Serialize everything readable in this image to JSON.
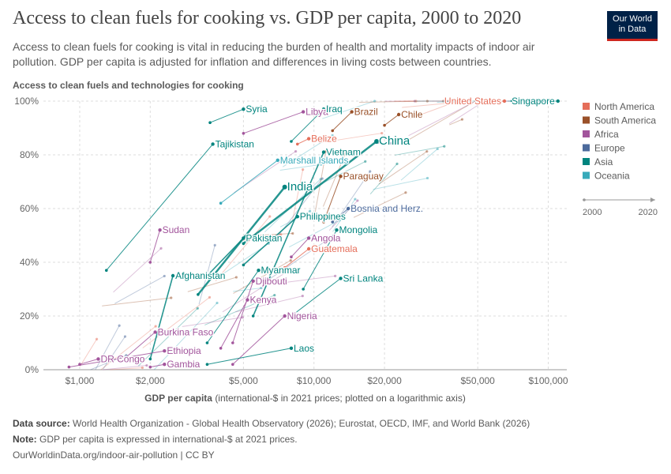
{
  "header": {
    "title": "Access to clean fuels for cooking vs. GDP per capita, 2000 to 2020",
    "subtitle": "Access to clean fuels for cooking is vital in reducing the burden of health and mortality impacts of indoor air pollution. GDP per capita is adjusted for inflation and differences in living costs between countries.",
    "logo_line1": "Our World",
    "logo_line2": "in Data"
  },
  "footer": {
    "source_label": "Data source:",
    "source_text": "World Health Organization - Global Health Observatory (2026); Eurostat, OECD, IMF, and World Bank (2026)",
    "note_label": "Note:",
    "note_text": "GDP per capita is expressed in international-$ at 2021 prices.",
    "url": "OurWorldinData.org/indoor-air-pollution | CC BY"
  },
  "chart_data": {
    "type": "scatter",
    "title": "Access to clean fuels for cooking vs. GDP per capita, 2000 to 2020",
    "ylabel": "Access to clean fuels and technologies for cooking",
    "xlabel_bold": "GDP per capita",
    "xlabel_rest": "(international-$ in 2021 prices; plotted on a logarithmic axis)",
    "x_scale": "log",
    "xlim": [
      700,
      120000
    ],
    "ylim": [
      0,
      100
    ],
    "x_ticks": [
      1000,
      2000,
      5000,
      10000,
      20000,
      50000,
      100000
    ],
    "x_tick_labels": [
      "$1,000",
      "$2,000",
      "$5,000",
      "$10,000",
      "$20,000",
      "$50,000",
      "$100,000"
    ],
    "y_ticks": [
      0,
      20,
      40,
      60,
      80,
      100
    ],
    "y_tick_labels": [
      "0%",
      "20%",
      "40%",
      "60%",
      "80%",
      "100%"
    ],
    "grid": true,
    "legend_position": "right",
    "timeline": {
      "start": "2000",
      "end": "2020"
    },
    "regions": [
      {
        "name": "North America",
        "color": "#e56e5a"
      },
      {
        "name": "South America",
        "color": "#9a5129"
      },
      {
        "name": "Africa",
        "color": "#a2559c"
      },
      {
        "name": "Europe",
        "color": "#4c6a9c"
      },
      {
        "name": "Asia",
        "color": "#00847e"
      },
      {
        "name": "Oceania",
        "color": "#38aaba"
      }
    ],
    "labeled_series": [
      {
        "name": "Syria",
        "region": "Asia",
        "x0": 3600,
        "y0": 92,
        "x1": 5000,
        "y1": 97
      },
      {
        "name": "Libya",
        "region": "Africa",
        "x0": 5000,
        "y0": 88,
        "x1": 9000,
        "y1": 96
      },
      {
        "name": "Iraq",
        "region": "Asia",
        "x0": 8000,
        "y0": 85,
        "x1": 11000,
        "y1": 97
      },
      {
        "name": "Brazil",
        "region": "South America",
        "x0": 12000,
        "y0": 89,
        "x1": 14500,
        "y1": 96
      },
      {
        "name": "Chile",
        "region": "South America",
        "x0": 20000,
        "y0": 91,
        "x1": 23000,
        "y1": 95
      },
      {
        "name": "United States",
        "region": "North America",
        "x0": 58000,
        "y0": 100,
        "x1": 65000,
        "y1": 100
      },
      {
        "name": "Singapore",
        "region": "Asia",
        "x0": 70000,
        "y0": 100,
        "x1": 110000,
        "y1": 100
      },
      {
        "name": "Belize",
        "region": "North America",
        "x0": 8500,
        "y0": 84,
        "x1": 9500,
        "y1": 86
      },
      {
        "name": "Tajikistan",
        "region": "Asia",
        "x0": 1300,
        "y0": 37,
        "x1": 3700,
        "y1": 84
      },
      {
        "name": "Vietnam",
        "region": "Asia",
        "x0": 5500,
        "y0": 20,
        "x1": 11000,
        "y1": 81
      },
      {
        "name": "China",
        "region": "Asia",
        "x0": 5000,
        "y0": 47,
        "x1": 18500,
        "y1": 85
      },
      {
        "name": "Marshall Islands",
        "region": "Oceania",
        "x0": 4000,
        "y0": 62,
        "x1": 7000,
        "y1": 78
      },
      {
        "name": "Paraguay",
        "region": "South America",
        "x0": 11000,
        "y0": 55,
        "x1": 13000,
        "y1": 72
      },
      {
        "name": "India",
        "region": "Asia",
        "x0": 3200,
        "y0": 28,
        "x1": 7500,
        "y1": 68
      },
      {
        "name": "Philippines",
        "region": "Asia",
        "x0": 5000,
        "y0": 39,
        "x1": 8500,
        "y1": 57
      },
      {
        "name": "Bosnia and Herz.",
        "region": "Europe",
        "x0": 12000,
        "y0": 55,
        "x1": 14000,
        "y1": 60
      },
      {
        "name": "Sudan",
        "region": "Africa",
        "x0": 2000,
        "y0": 40,
        "x1": 2200,
        "y1": 52
      },
      {
        "name": "Mongolia",
        "region": "Asia",
        "x0": 9000,
        "y0": 30,
        "x1": 12500,
        "y1": 52
      },
      {
        "name": "Angola",
        "region": "Africa",
        "x0": 8000,
        "y0": 42,
        "x1": 9500,
        "y1": 49
      },
      {
        "name": "Pakistan",
        "region": "Asia",
        "x0": 3500,
        "y0": 35,
        "x1": 5000,
        "y1": 49
      },
      {
        "name": "Guatemala",
        "region": "North America",
        "x0": 7500,
        "y0": 38,
        "x1": 9500,
        "y1": 45
      },
      {
        "name": "Myanmar",
        "region": "Asia",
        "x0": 3500,
        "y0": 10,
        "x1": 5800,
        "y1": 37
      },
      {
        "name": "Afghanistan",
        "region": "Asia",
        "x0": 2000,
        "y0": 4,
        "x1": 2500,
        "y1": 35
      },
      {
        "name": "Djibouti",
        "region": "Africa",
        "x0": 4500,
        "y0": 10,
        "x1": 5500,
        "y1": 33
      },
      {
        "name": "Sri Lanka",
        "region": "Asia",
        "x0": 8000,
        "y0": 20,
        "x1": 13000,
        "y1": 34
      },
      {
        "name": "Kenya",
        "region": "Africa",
        "x0": 4000,
        "y0": 8,
        "x1": 5200,
        "y1": 26
      },
      {
        "name": "Nigeria",
        "region": "Africa",
        "x0": 4500,
        "y0": 2,
        "x1": 7500,
        "y1": 20
      },
      {
        "name": "Burkina Faso",
        "region": "Africa",
        "x0": 1500,
        "y0": 3,
        "x1": 2100,
        "y1": 14
      },
      {
        "name": "Laos",
        "region": "Asia",
        "x0": 3500,
        "y0": 2,
        "x1": 8000,
        "y1": 8
      },
      {
        "name": "DR Congo",
        "region": "Africa",
        "x0": 1000,
        "y0": 2,
        "x1": 1200,
        "y1": 4
      },
      {
        "name": "Ethiopia",
        "region": "Africa",
        "x0": 900,
        "y0": 1,
        "x1": 2300,
        "y1": 7
      },
      {
        "name": "Gambia",
        "region": "Africa",
        "x0": 2000,
        "y0": 1,
        "x1": 2300,
        "y1": 2
      }
    ]
  }
}
